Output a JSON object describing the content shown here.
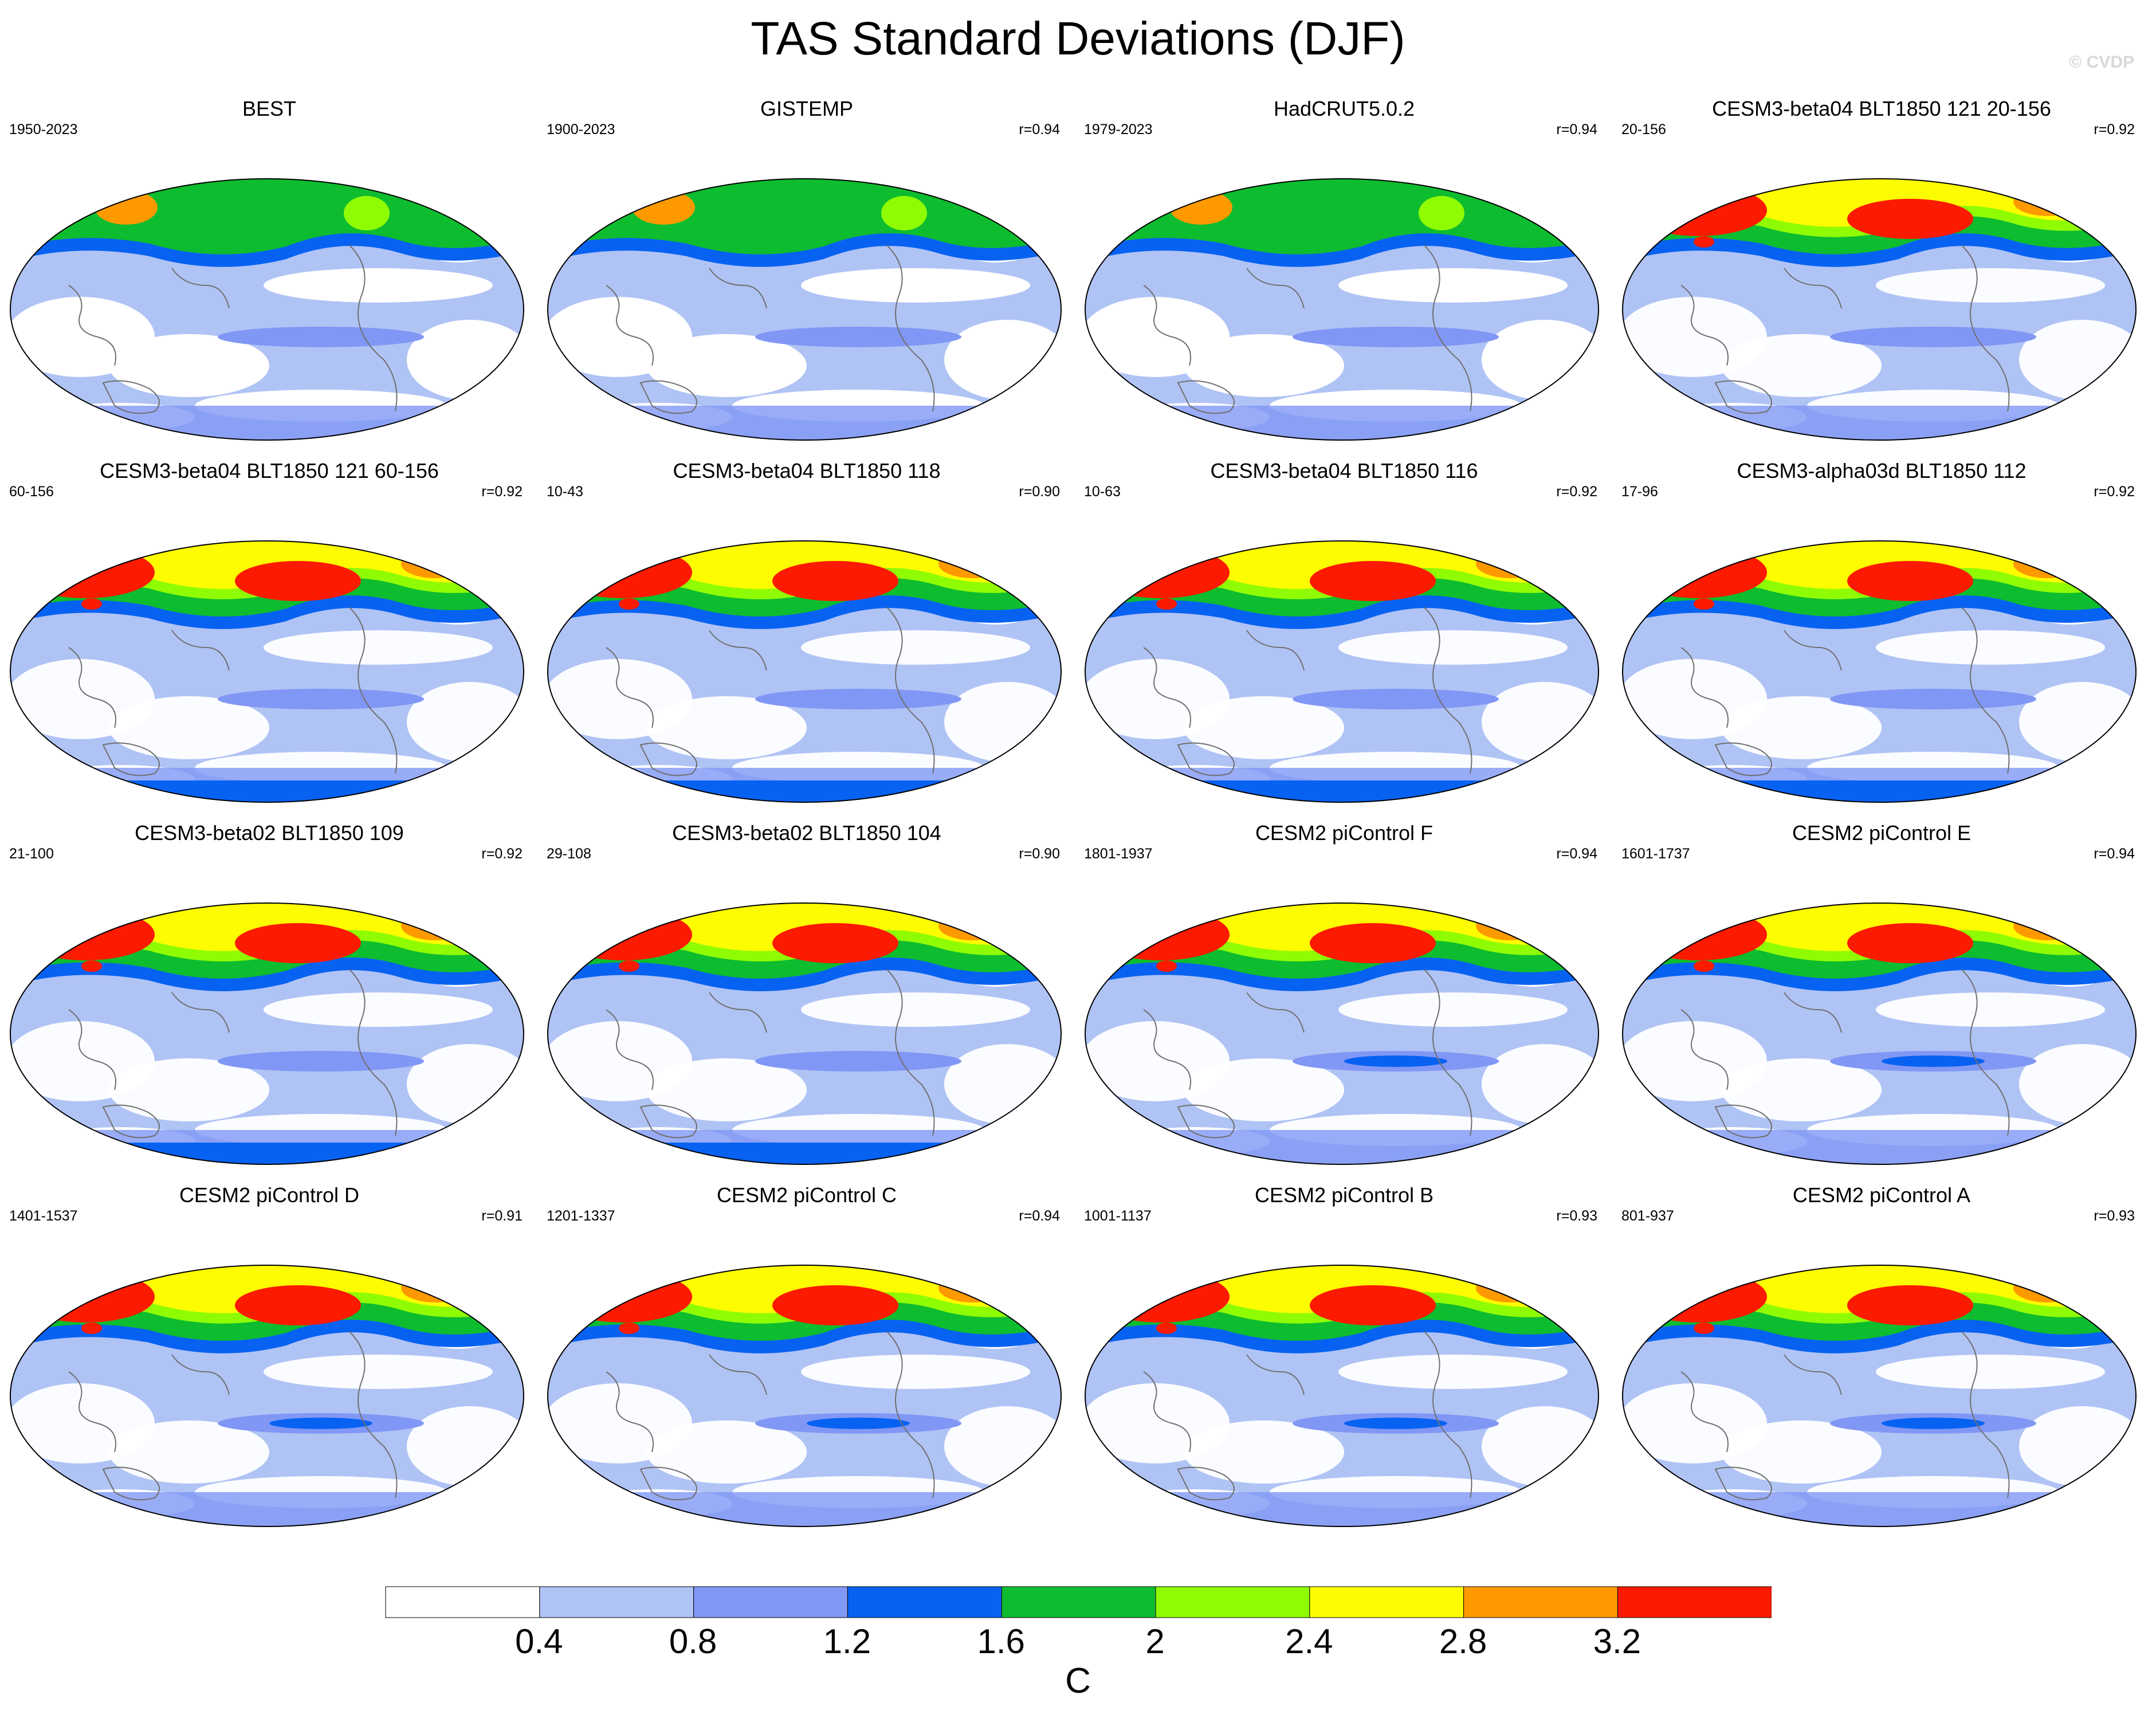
{
  "title": "TAS Standard Deviations (DJF)",
  "copyright": "© CVDP",
  "panels": [
    {
      "title": "BEST",
      "years": "1950-2023",
      "corr": ""
    },
    {
      "title": "GISTEMP",
      "years": "1900-2023",
      "corr": "r=0.94"
    },
    {
      "title": "HadCRUT5.0.2",
      "years": "1979-2023",
      "corr": "r=0.94"
    },
    {
      "title": "CESM3-beta04 BLT1850 121 20-156",
      "years": "20-156",
      "corr": "r=0.92"
    },
    {
      "title": "CESM3-beta04 BLT1850 121 60-156",
      "years": "60-156",
      "corr": "r=0.92"
    },
    {
      "title": "CESM3-beta04 BLT1850 118",
      "years": "10-43",
      "corr": "r=0.90"
    },
    {
      "title": "CESM3-beta04 BLT1850 116",
      "years": "10-63",
      "corr": "r=0.92"
    },
    {
      "title": "CESM3-alpha03d BLT1850 112",
      "years": "17-96",
      "corr": "r=0.92"
    },
    {
      "title": "CESM3-beta02 BLT1850 109",
      "years": "21-100",
      "corr": "r=0.92"
    },
    {
      "title": "CESM3-beta02 BLT1850 104",
      "years": "29-108",
      "corr": "r=0.90"
    },
    {
      "title": "CESM2 piControl F",
      "years": "1801-1937",
      "corr": "r=0.94"
    },
    {
      "title": "CESM2 piControl E",
      "years": "1601-1737",
      "corr": "r=0.94"
    },
    {
      "title": "CESM2 piControl D",
      "years": "1401-1537",
      "corr": "r=0.91"
    },
    {
      "title": "CESM2 piControl C",
      "years": "1201-1337",
      "corr": "r=0.94"
    },
    {
      "title": "CESM2 piControl B",
      "years": "1001-1137",
      "corr": "r=0.93"
    },
    {
      "title": "CESM2 piControl A",
      "years": "801-937",
      "corr": "r=0.93"
    }
  ],
  "colorbar": {
    "colors": [
      "#ffffff",
      "#b0c3f5",
      "#8197f5",
      "#0762f2",
      "#0ebc2f",
      "#8ffc04",
      "#fefc00",
      "#fe9a00",
      "#fc1a00"
    ],
    "ticks": [
      "0.4",
      "0.8",
      "1.2",
      "1.6",
      "2",
      "2.4",
      "2.8",
      "3.2"
    ],
    "unit": "C"
  }
}
